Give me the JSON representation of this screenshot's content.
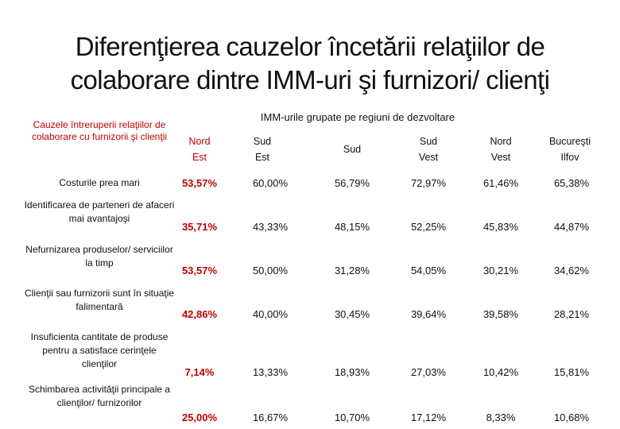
{
  "title": {
    "line1": "Diferenţierea  cauzelor încetării relaţiilor de",
    "line2": "colaborare dintre IMM-uri şi furnizori/ clienţi"
  },
  "table": {
    "group_header": "IMM-urile grupate pe regiuni de dezvoltare",
    "criteria_header": "Cauzele întreruperii relaţiilor de colaborare cu furnizorii şi clienţii",
    "columns": [
      {
        "line1": "Nord",
        "line2": "Est"
      },
      {
        "line1": "Sud",
        "line2": "Est"
      },
      {
        "line1": "Sud",
        "line2": ""
      },
      {
        "line1": "Sud",
        "line2": "Vest"
      },
      {
        "line1": "Nord",
        "line2": "Vest"
      },
      {
        "line1": "Bucureşti",
        "line2": "Ilfov"
      }
    ],
    "rows": [
      {
        "label": "Costurile prea mari",
        "values": [
          "53,57%",
          "60,00%",
          "56,79%",
          "72,97%",
          "61,46%",
          "65,38%"
        ]
      },
      {
        "label": "Identificarea de parteneri de afaceri mai avantajoşi",
        "values": [
          "35,71%",
          "43,33%",
          "48,15%",
          "52,25%",
          "45,83%",
          "44,87%"
        ]
      },
      {
        "label": "Nefurnizarea produselor/ serviciilor la timp",
        "values": [
          "53,57%",
          "50,00%",
          "31,28%",
          "54,05%",
          "30,21%",
          "34,62%"
        ]
      },
      {
        "label": "Clienţii sau furnizorii sunt în situaţie falimentară",
        "values": [
          "42,86%",
          "40,00%",
          "30,45%",
          "39,64%",
          "39,58%",
          "28,21%"
        ]
      },
      {
        "label": "Insuficienta cantitate de produse pentru a satisface cerinţele clienţilor",
        "values": [
          "7,14%",
          "13,33%",
          "18,93%",
          "27,03%",
          "10,42%",
          "15,81%"
        ]
      },
      {
        "label": "Schimbarea activităţii principale a clienţilor/ furnizorilor",
        "values": [
          "25,00%",
          "16,67%",
          "10,70%",
          "17,12%",
          "8,33%",
          "10,68%"
        ]
      }
    ]
  }
}
